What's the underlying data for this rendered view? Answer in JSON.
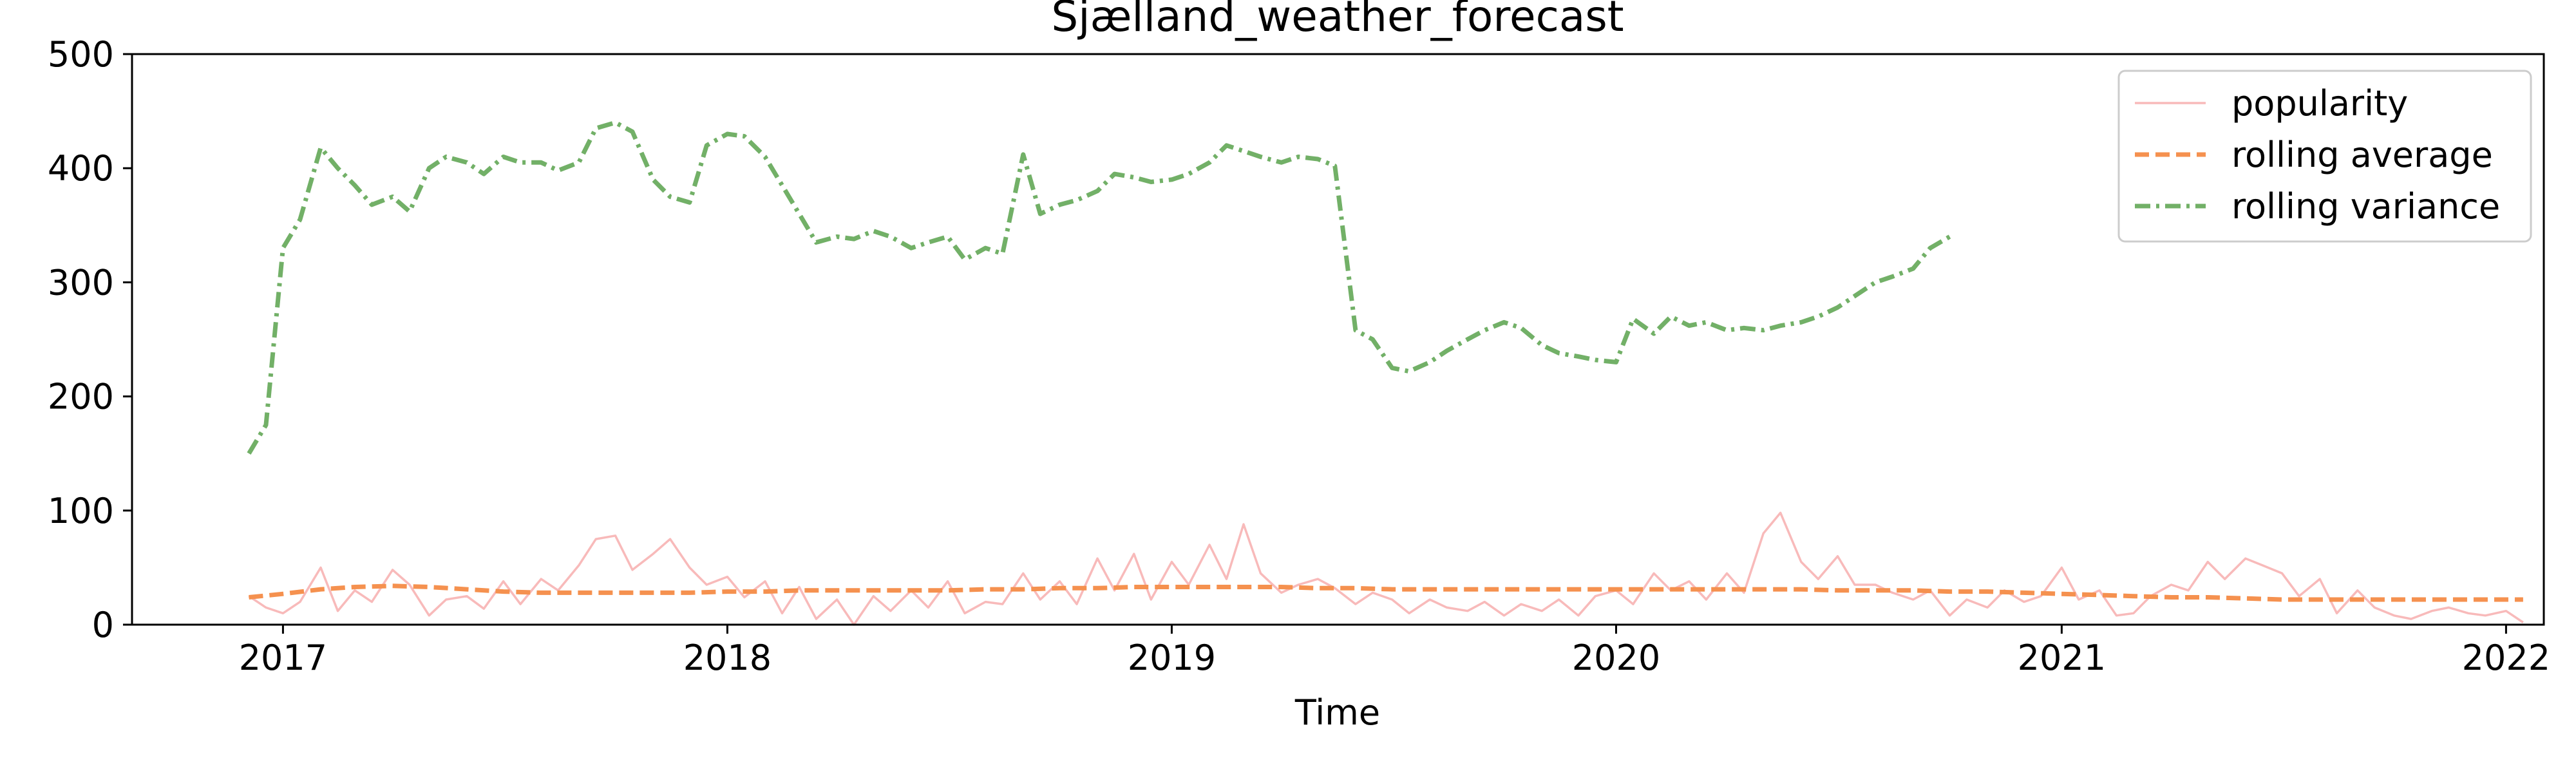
{
  "chart_data": {
    "type": "line",
    "title": "Sjælland_weather_forecast",
    "xlabel": "Time",
    "ylabel": "",
    "xlim": [
      "2016-08-30",
      "2022-02-01"
    ],
    "ylim": [
      0,
      500
    ],
    "x_ticks": [
      "2017",
      "2018",
      "2019",
      "2020",
      "2021",
      "2022"
    ],
    "y_ticks": [
      0,
      100,
      200,
      300,
      400,
      500
    ],
    "grid": false,
    "legend_position": "upper right",
    "series": [
      {
        "name": "popularity",
        "color": "#f8baba",
        "style": "solid",
        "points": [
          [
            "2016-12-04",
            25
          ],
          [
            "2016-12-18",
            15
          ],
          [
            "2017-01-01",
            10
          ],
          [
            "2017-01-15",
            20
          ],
          [
            "2017-02-01",
            50
          ],
          [
            "2017-02-15",
            12
          ],
          [
            "2017-03-01",
            30
          ],
          [
            "2017-03-15",
            20
          ],
          [
            "2017-04-01",
            48
          ],
          [
            "2017-04-15",
            35
          ],
          [
            "2017-05-01",
            8
          ],
          [
            "2017-05-15",
            22
          ],
          [
            "2017-06-01",
            25
          ],
          [
            "2017-06-15",
            14
          ],
          [
            "2017-07-01",
            38
          ],
          [
            "2017-07-15",
            18
          ],
          [
            "2017-08-01",
            40
          ],
          [
            "2017-08-15",
            30
          ],
          [
            "2017-09-01",
            52
          ],
          [
            "2017-09-15",
            75
          ],
          [
            "2017-10-01",
            78
          ],
          [
            "2017-10-15",
            48
          ],
          [
            "2017-11-01",
            62
          ],
          [
            "2017-11-15",
            75
          ],
          [
            "2017-12-01",
            50
          ],
          [
            "2017-12-15",
            35
          ],
          [
            "2018-01-01",
            42
          ],
          [
            "2018-01-15",
            24
          ],
          [
            "2018-02-01",
            38
          ],
          [
            "2018-02-15",
            10
          ],
          [
            "2018-03-01",
            33
          ],
          [
            "2018-03-15",
            5
          ],
          [
            "2018-04-01",
            22
          ],
          [
            "2018-04-15",
            0
          ],
          [
            "2018-05-01",
            25
          ],
          [
            "2018-05-15",
            12
          ],
          [
            "2018-06-01",
            30
          ],
          [
            "2018-06-15",
            15
          ],
          [
            "2018-07-01",
            38
          ],
          [
            "2018-07-15",
            10
          ],
          [
            "2018-08-01",
            20
          ],
          [
            "2018-08-15",
            18
          ],
          [
            "2018-09-01",
            45
          ],
          [
            "2018-09-15",
            22
          ],
          [
            "2018-10-01",
            38
          ],
          [
            "2018-10-15",
            18
          ],
          [
            "2018-11-01",
            58
          ],
          [
            "2018-11-15",
            30
          ],
          [
            "2018-12-01",
            62
          ],
          [
            "2018-12-15",
            22
          ],
          [
            "2019-01-01",
            55
          ],
          [
            "2019-01-15",
            35
          ],
          [
            "2019-02-01",
            70
          ],
          [
            "2019-02-15",
            40
          ],
          [
            "2019-03-01",
            88
          ],
          [
            "2019-03-15",
            45
          ],
          [
            "2019-04-01",
            28
          ],
          [
            "2019-04-15",
            35
          ],
          [
            "2019-05-01",
            40
          ],
          [
            "2019-05-15",
            32
          ],
          [
            "2019-06-01",
            18
          ],
          [
            "2019-06-15",
            28
          ],
          [
            "2019-07-01",
            22
          ],
          [
            "2019-07-15",
            10
          ],
          [
            "2019-08-01",
            22
          ],
          [
            "2019-08-15",
            15
          ],
          [
            "2019-09-01",
            12
          ],
          [
            "2019-09-15",
            20
          ],
          [
            "2019-10-01",
            8
          ],
          [
            "2019-10-15",
            18
          ],
          [
            "2019-11-01",
            12
          ],
          [
            "2019-11-15",
            22
          ],
          [
            "2019-12-01",
            8
          ],
          [
            "2019-12-15",
            25
          ],
          [
            "2020-01-01",
            30
          ],
          [
            "2020-01-15",
            18
          ],
          [
            "2020-02-01",
            45
          ],
          [
            "2020-02-15",
            30
          ],
          [
            "2020-03-01",
            38
          ],
          [
            "2020-03-15",
            22
          ],
          [
            "2020-04-01",
            45
          ],
          [
            "2020-04-15",
            28
          ],
          [
            "2020-05-01",
            80
          ],
          [
            "2020-05-15",
            98
          ],
          [
            "2020-06-01",
            55
          ],
          [
            "2020-06-15",
            40
          ],
          [
            "2020-07-01",
            60
          ],
          [
            "2020-07-15",
            35
          ],
          [
            "2020-08-01",
            35
          ],
          [
            "2020-08-15",
            28
          ],
          [
            "2020-09-01",
            22
          ],
          [
            "2020-09-15",
            30
          ],
          [
            "2020-10-01",
            8
          ],
          [
            "2020-10-15",
            22
          ],
          [
            "2020-11-01",
            15
          ],
          [
            "2020-11-15",
            30
          ],
          [
            "2020-12-01",
            20
          ],
          [
            "2020-12-15",
            25
          ],
          [
            "2021-01-01",
            50
          ],
          [
            "2021-01-15",
            22
          ],
          [
            "2021-02-01",
            30
          ],
          [
            "2021-02-15",
            8
          ],
          [
            "2021-03-01",
            10
          ],
          [
            "2021-03-15",
            25
          ],
          [
            "2021-04-01",
            35
          ],
          [
            "2021-04-15",
            30
          ],
          [
            "2021-05-01",
            55
          ],
          [
            "2021-05-15",
            40
          ],
          [
            "2021-06-01",
            58
          ],
          [
            "2021-06-15",
            52
          ],
          [
            "2021-07-01",
            45
          ],
          [
            "2021-07-15",
            25
          ],
          [
            "2021-08-01",
            40
          ],
          [
            "2021-08-15",
            10
          ],
          [
            "2021-09-01",
            30
          ],
          [
            "2021-09-15",
            15
          ],
          [
            "2021-10-01",
            8
          ],
          [
            "2021-10-15",
            5
          ],
          [
            "2021-11-01",
            12
          ],
          [
            "2021-11-15",
            15
          ],
          [
            "2021-12-01",
            10
          ],
          [
            "2021-12-15",
            8
          ],
          [
            "2022-01-01",
            12
          ],
          [
            "2022-01-15",
            2
          ]
        ]
      },
      {
        "name": "rolling average",
        "color": "#f5914f",
        "style": "dashed",
        "points": [
          [
            "2016-12-04",
            24
          ],
          [
            "2017-01-01",
            27
          ],
          [
            "2017-02-01",
            31
          ],
          [
            "2017-03-01",
            33
          ],
          [
            "2017-04-01",
            34
          ],
          [
            "2017-05-01",
            33
          ],
          [
            "2017-06-01",
            31
          ],
          [
            "2017-07-01",
            29
          ],
          [
            "2017-08-01",
            28
          ],
          [
            "2017-09-01",
            28
          ],
          [
            "2017-10-01",
            28
          ],
          [
            "2017-11-01",
            28
          ],
          [
            "2017-12-01",
            28
          ],
          [
            "2018-01-01",
            29
          ],
          [
            "2018-02-01",
            29
          ],
          [
            "2018-03-01",
            30
          ],
          [
            "2018-04-01",
            30
          ],
          [
            "2018-05-01",
            30
          ],
          [
            "2018-06-01",
            30
          ],
          [
            "2018-07-01",
            30
          ],
          [
            "2018-08-01",
            31
          ],
          [
            "2018-09-01",
            31
          ],
          [
            "2018-10-01",
            32
          ],
          [
            "2018-11-01",
            32
          ],
          [
            "2018-12-01",
            33
          ],
          [
            "2019-01-01",
            33
          ],
          [
            "2019-02-01",
            33
          ],
          [
            "2019-03-01",
            33
          ],
          [
            "2019-04-01",
            33
          ],
          [
            "2019-05-01",
            32
          ],
          [
            "2019-06-01",
            32
          ],
          [
            "2019-07-01",
            31
          ],
          [
            "2019-08-01",
            31
          ],
          [
            "2019-09-01",
            31
          ],
          [
            "2019-10-01",
            31
          ],
          [
            "2019-11-01",
            31
          ],
          [
            "2019-12-01",
            31
          ],
          [
            "2020-01-01",
            31
          ],
          [
            "2020-02-01",
            31
          ],
          [
            "2020-03-01",
            31
          ],
          [
            "2020-04-01",
            31
          ],
          [
            "2020-05-01",
            31
          ],
          [
            "2020-06-01",
            31
          ],
          [
            "2020-07-01",
            30
          ],
          [
            "2020-08-01",
            30
          ],
          [
            "2020-09-01",
            30
          ],
          [
            "2020-10-01",
            29
          ],
          [
            "2020-11-01",
            29
          ],
          [
            "2020-12-01",
            28
          ],
          [
            "2021-01-01",
            27
          ],
          [
            "2021-02-01",
            26
          ],
          [
            "2021-03-01",
            25
          ],
          [
            "2021-04-01",
            24
          ],
          [
            "2021-05-01",
            24
          ],
          [
            "2021-06-01",
            23
          ],
          [
            "2021-07-01",
            22
          ],
          [
            "2021-08-01",
            22
          ],
          [
            "2021-09-01",
            22
          ],
          [
            "2021-10-01",
            22
          ],
          [
            "2021-11-01",
            22
          ],
          [
            "2021-12-01",
            22
          ],
          [
            "2022-01-01",
            22
          ],
          [
            "2022-01-15",
            22
          ]
        ]
      },
      {
        "name": "rolling variance",
        "color": "#72b067",
        "style": "dashdot",
        "points": [
          [
            "2016-12-04",
            150
          ],
          [
            "2016-12-18",
            175
          ],
          [
            "2017-01-01",
            330
          ],
          [
            "2017-01-15",
            355
          ],
          [
            "2017-02-01",
            418
          ],
          [
            "2017-02-15",
            400
          ],
          [
            "2017-03-01",
            385
          ],
          [
            "2017-03-15",
            368
          ],
          [
            "2017-04-01",
            375
          ],
          [
            "2017-04-15",
            362
          ],
          [
            "2017-05-01",
            400
          ],
          [
            "2017-05-15",
            410
          ],
          [
            "2017-06-01",
            405
          ],
          [
            "2017-06-15",
            395
          ],
          [
            "2017-07-01",
            410
          ],
          [
            "2017-07-15",
            405
          ],
          [
            "2017-08-01",
            405
          ],
          [
            "2017-08-15",
            398
          ],
          [
            "2017-09-01",
            405
          ],
          [
            "2017-09-15",
            435
          ],
          [
            "2017-10-01",
            440
          ],
          [
            "2017-10-15",
            432
          ],
          [
            "2017-11-01",
            390
          ],
          [
            "2017-11-15",
            375
          ],
          [
            "2017-12-01",
            370
          ],
          [
            "2017-12-15",
            420
          ],
          [
            "2018-01-01",
            430
          ],
          [
            "2018-01-15",
            428
          ],
          [
            "2018-02-01",
            410
          ],
          [
            "2018-02-15",
            385
          ],
          [
            "2018-03-01",
            360
          ],
          [
            "2018-03-15",
            335
          ],
          [
            "2018-04-01",
            340
          ],
          [
            "2018-04-15",
            338
          ],
          [
            "2018-05-01",
            345
          ],
          [
            "2018-05-15",
            340
          ],
          [
            "2018-06-01",
            330
          ],
          [
            "2018-06-15",
            335
          ],
          [
            "2018-07-01",
            340
          ],
          [
            "2018-07-15",
            320
          ],
          [
            "2018-08-01",
            330
          ],
          [
            "2018-08-15",
            325
          ],
          [
            "2018-09-01",
            412
          ],
          [
            "2018-09-15",
            360
          ],
          [
            "2018-10-01",
            368
          ],
          [
            "2018-10-15",
            372
          ],
          [
            "2018-11-01",
            380
          ],
          [
            "2018-11-15",
            395
          ],
          [
            "2018-12-01",
            392
          ],
          [
            "2018-12-15",
            388
          ],
          [
            "2019-01-01",
            390
          ],
          [
            "2019-01-15",
            395
          ],
          [
            "2019-02-01",
            405
          ],
          [
            "2019-02-15",
            420
          ],
          [
            "2019-03-01",
            415
          ],
          [
            "2019-03-15",
            410
          ],
          [
            "2019-04-01",
            405
          ],
          [
            "2019-04-15",
            410
          ],
          [
            "2019-05-01",
            408
          ],
          [
            "2019-05-15",
            402
          ],
          [
            "2019-06-01",
            258
          ],
          [
            "2019-06-15",
            250
          ],
          [
            "2019-07-01",
            225
          ],
          [
            "2019-07-15",
            222
          ],
          [
            "2019-08-01",
            230
          ],
          [
            "2019-08-15",
            240
          ],
          [
            "2019-09-01",
            250
          ],
          [
            "2019-09-15",
            258
          ],
          [
            "2019-10-01",
            265
          ],
          [
            "2019-10-15",
            260
          ],
          [
            "2019-11-01",
            245
          ],
          [
            "2019-11-15",
            238
          ],
          [
            "2019-12-01",
            235
          ],
          [
            "2019-12-15",
            232
          ],
          [
            "2020-01-01",
            230
          ],
          [
            "2020-01-15",
            268
          ],
          [
            "2020-02-01",
            255
          ],
          [
            "2020-02-15",
            270
          ],
          [
            "2020-03-01",
            262
          ],
          [
            "2020-03-15",
            265
          ],
          [
            "2020-04-01",
            258
          ],
          [
            "2020-04-15",
            260
          ],
          [
            "2020-05-01",
            258
          ],
          [
            "2020-05-15",
            262
          ],
          [
            "2020-06-01",
            265
          ],
          [
            "2020-06-15",
            270
          ],
          [
            "2020-07-01",
            278
          ],
          [
            "2020-07-15",
            288
          ],
          [
            "2020-08-01",
            300
          ],
          [
            "2020-08-15",
            305
          ],
          [
            "2020-09-01",
            312
          ],
          [
            "2020-09-15",
            330
          ],
          [
            "2020-10-01",
            340
          ]
        ]
      }
    ]
  }
}
